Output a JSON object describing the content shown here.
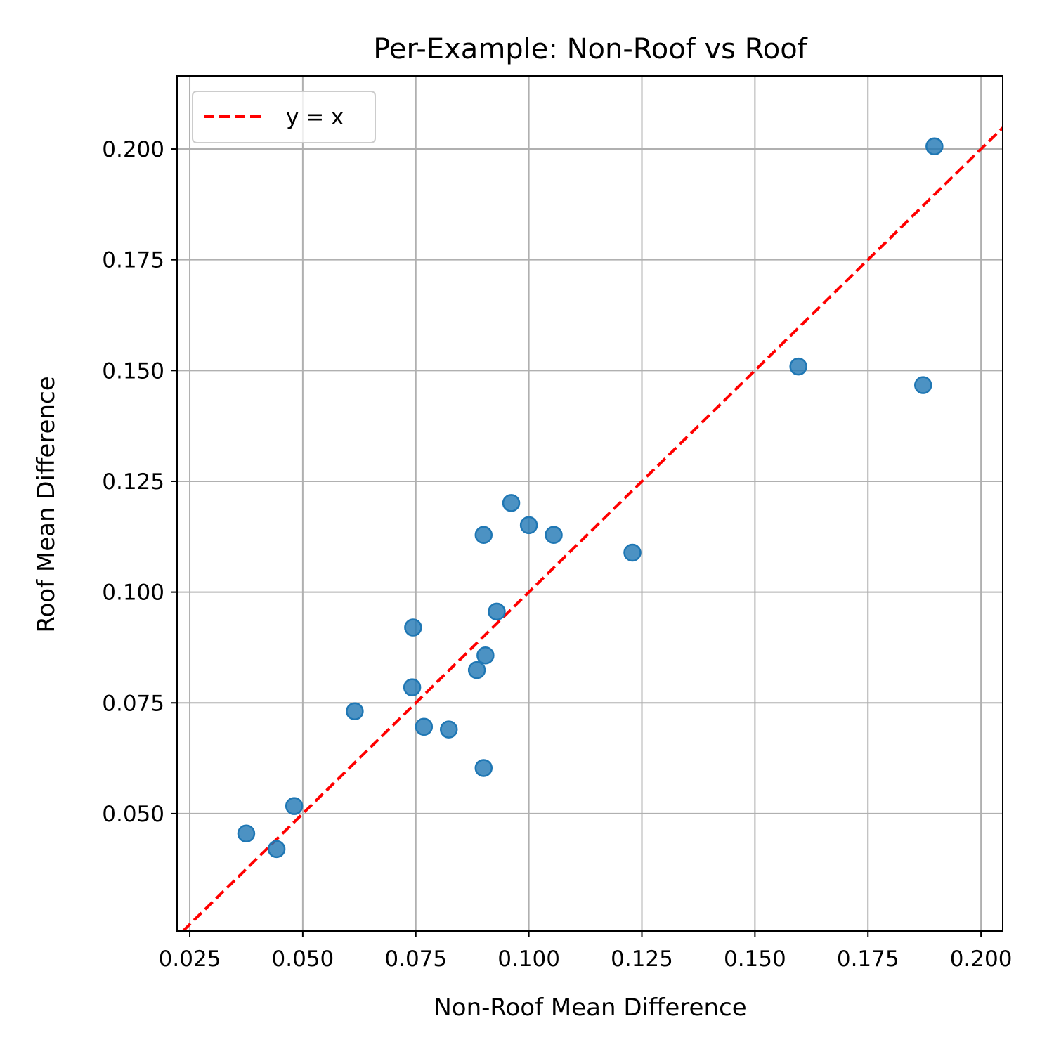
{
  "chart_data": {
    "type": "scatter",
    "title": "Per-Example: Non-Roof vs Roof",
    "xlabel": "Non-Roof Mean Difference",
    "ylabel": "Roof Mean Difference",
    "xlim": [
      0.0222,
      0.2048
    ],
    "ylim": [
      0.0235,
      0.2165
    ],
    "xticks": [
      "0.025",
      "0.050",
      "0.075",
      "0.100",
      "0.125",
      "0.150",
      "0.175",
      "0.200"
    ],
    "yticks": [
      "0.050",
      "0.075",
      "0.100",
      "0.125",
      "0.150",
      "0.175",
      "0.200"
    ],
    "grid": true,
    "legend_position": "top-left",
    "reference_line": {
      "label": "y = x",
      "color": "#ff0000",
      "style": "dashed"
    },
    "point_color": "#1f77b4",
    "points": [
      {
        "x": 0.0375,
        "y": 0.0455
      },
      {
        "x": 0.0442,
        "y": 0.042
      },
      {
        "x": 0.0481,
        "y": 0.0517
      },
      {
        "x": 0.0615,
        "y": 0.0731
      },
      {
        "x": 0.0742,
        "y": 0.0785
      },
      {
        "x": 0.0744,
        "y": 0.092
      },
      {
        "x": 0.0768,
        "y": 0.0696
      },
      {
        "x": 0.0823,
        "y": 0.069
      },
      {
        "x": 0.0885,
        "y": 0.0824
      },
      {
        "x": 0.09,
        "y": 0.0603
      },
      {
        "x": 0.09,
        "y": 0.1129
      },
      {
        "x": 0.0904,
        "y": 0.0857
      },
      {
        "x": 0.0929,
        "y": 0.0956
      },
      {
        "x": 0.0961,
        "y": 0.1201
      },
      {
        "x": 0.1,
        "y": 0.1151
      },
      {
        "x": 0.1055,
        "y": 0.1129
      },
      {
        "x": 0.1229,
        "y": 0.1089
      },
      {
        "x": 0.1596,
        "y": 0.1509
      },
      {
        "x": 0.1872,
        "y": 0.1467
      },
      {
        "x": 0.1897,
        "y": 0.2006
      }
    ]
  }
}
